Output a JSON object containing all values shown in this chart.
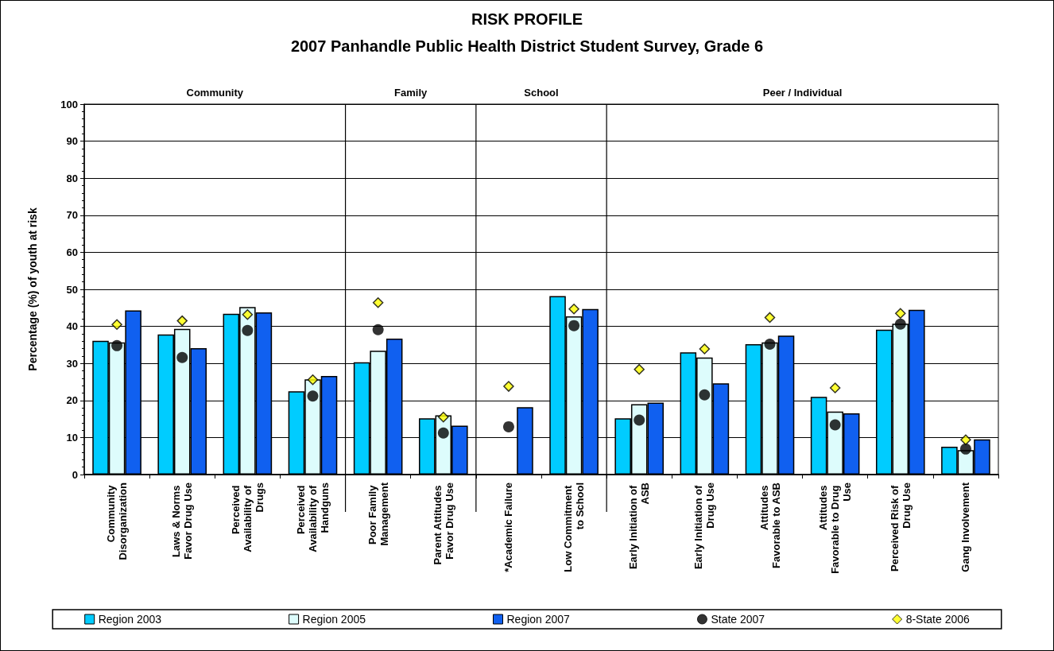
{
  "chart_data": {
    "type": "bar",
    "title": "RISK PROFILE",
    "subtitle": "2007 Panhandle Public Health District Student Survey, Grade 6",
    "ylabel": "Percentage (%) of youth at risk",
    "categories": [
      "Community Disorganization",
      "Laws & Norms Favor Drug Use",
      "Perceived Availability of Drugs",
      "Perceived Availability of Handguns",
      "Poor Family Management",
      "Parent Attitudes Favor Drug Use",
      "*Academic Failure",
      "Low Commitment to School",
      "Early Initiation of ASB",
      "Early Initiation of Drug Use",
      "Attitudes Favorable to ASB",
      "Attitudes Favorable to Drug Use",
      "Perceived Risk of Drug Use",
      "Gang Involvement"
    ],
    "series": [
      {
        "name": "Region 2003",
        "color": "#00ccff",
        "values": [
          36.1,
          37.8,
          43.4,
          22.5,
          30.3,
          15.2,
          null,
          48.2,
          15.2,
          33.0,
          35.2,
          21.0,
          39.1,
          7.5
        ]
      },
      {
        "name": "Region 2005",
        "color": "#ddfcfc",
        "values": [
          35.7,
          39.3,
          45.2,
          25.7,
          33.4,
          16.0,
          null,
          42.7,
          19.0,
          31.6,
          35.7,
          17.0,
          40.7,
          6.6
        ]
      },
      {
        "name": "Region 2007",
        "color": "#1060f0",
        "values": [
          44.3,
          34.1,
          43.8,
          26.6,
          36.7,
          13.2,
          18.2,
          44.7,
          19.4,
          24.6,
          37.5,
          16.5,
          44.5,
          9.5
        ]
      },
      {
        "name": "State 2007",
        "type": "scatter",
        "marker": "circle",
        "color": "#000000",
        "values": [
          34.8,
          31.6,
          38.9,
          21.2,
          39.1,
          11.2,
          12.9,
          40.2,
          14.7,
          21.5,
          35.2,
          13.4,
          40.6,
          6.9
        ]
      },
      {
        "name": "8-State 2006",
        "type": "scatter",
        "marker": "diamond",
        "color": "#ffff00",
        "values": [
          40.5,
          41.5,
          43.2,
          25.6,
          46.4,
          15.5,
          23.8,
          44.7,
          28.4,
          33.9,
          42.4,
          23.4,
          43.5,
          9.4
        ]
      }
    ],
    "annotations": [
      "Community",
      "Family",
      "School",
      "Peer / Individual"
    ],
    "ylim": [
      0,
      100
    ],
    "yticks": [
      0,
      10,
      20,
      30,
      40,
      50,
      60,
      70,
      80,
      90,
      100
    ],
    "grid": "y",
    "legend": "bottom"
  }
}
